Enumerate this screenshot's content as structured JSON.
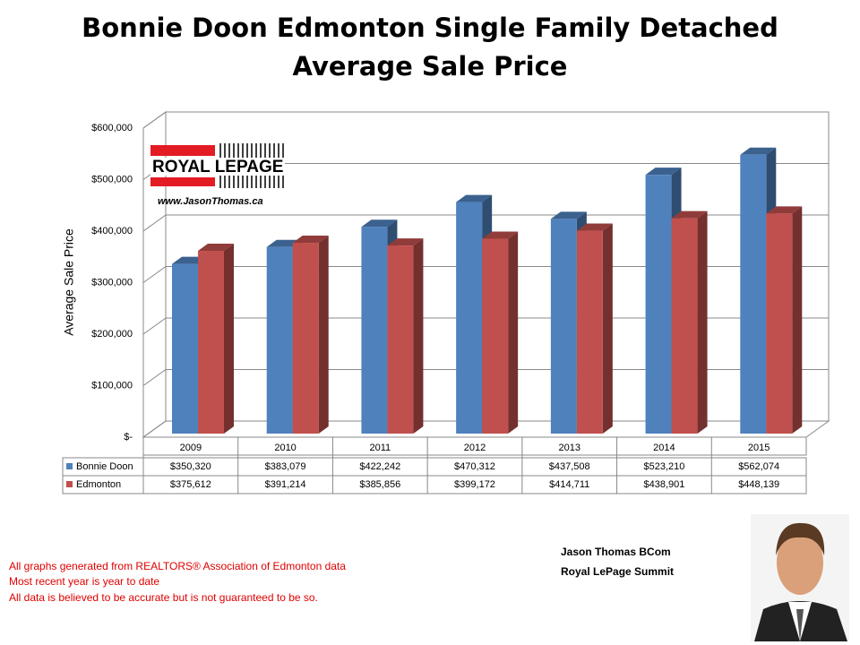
{
  "chart_data": {
    "type": "bar3d",
    "title": [
      "Bonnie Doon Edmonton Single Family Detached",
      "Average Sale Price"
    ],
    "y_label": "Average Sale Price",
    "categories": [
      "2009",
      "2010",
      "2011",
      "2012",
      "2013",
      "2014",
      "2015"
    ],
    "series": [
      {
        "name": "Bonnie Doon",
        "color": "#4f81bd",
        "values": [
          350320,
          383079,
          422242,
          470312,
          437508,
          523210,
          562074
        ],
        "value_labels": [
          "$350,320",
          "$383,079",
          "$422,242",
          "$470,312",
          "$437,508",
          "$523,210",
          "$562,074"
        ]
      },
      {
        "name": "Edmonton",
        "color": "#c0504d",
        "values": [
          375612,
          391214,
          385856,
          399172,
          414711,
          438901,
          448139
        ],
        "value_labels": [
          "$375,612",
          "$391,214",
          "$385,856",
          "$399,172",
          "$414,711",
          "$438,901",
          "$448,139"
        ]
      }
    ],
    "ylim": [
      0,
      600000
    ],
    "yticks": [
      {
        "value": 0,
        "label": "$-"
      },
      {
        "value": 100000,
        "label": "$100,000"
      },
      {
        "value": 200000,
        "label": "$200,000"
      },
      {
        "value": 300000,
        "label": "$300,000"
      },
      {
        "value": 400000,
        "label": "$400,000"
      },
      {
        "value": 500000,
        "label": "$500,000"
      },
      {
        "value": 600000,
        "label": "$600,000"
      }
    ],
    "grid": true
  },
  "logo": {
    "brand": "ROYAL LEPAGE",
    "url": "www.JasonThomas.ca"
  },
  "notes": [
    "All graphs generated from REALTORS® Association of Edmonton data",
    "Most recent year is year to date",
    "All data is believed to be accurate but is not guaranteed to be so."
  ],
  "author": [
    "Jason Thomas BCom",
    "Royal LePage Summit"
  ]
}
